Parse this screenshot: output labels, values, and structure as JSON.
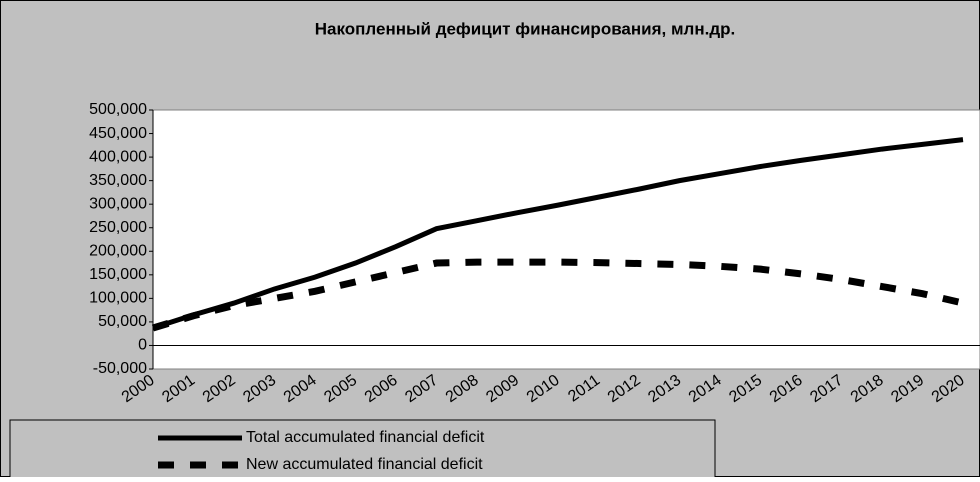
{
  "chart_data": {
    "type": "line",
    "title": "Накопленный дефицит финансирования, млн.др.",
    "categories": [
      "2000",
      "2001",
      "2002",
      "2003",
      "2004",
      "2005",
      "2006",
      "2007",
      "2008",
      "2009",
      "2010",
      "2011",
      "2012",
      "2013",
      "2014",
      "2015",
      "2016",
      "2017",
      "2018",
      "2019",
      "2020"
    ],
    "series": [
      {
        "name": "Total accumulated financial deficit",
        "color": "#000000",
        "style": "solid",
        "values": [
          37000,
          65000,
          90000,
          120000,
          145000,
          175000,
          210000,
          248000,
          265000,
          282000,
          298000,
          315000,
          332000,
          350000,
          365000,
          380000,
          393000,
          405000,
          417000,
          427000,
          437000
        ]
      },
      {
        "name": "New accumulated financial deficit",
        "color": "#000000",
        "style": "dashed",
        "values": [
          37000,
          63000,
          85000,
          100000,
          115000,
          135000,
          155000,
          175000,
          177000,
          177000,
          177000,
          176000,
          174000,
          172000,
          168000,
          162000,
          152000,
          140000,
          125000,
          110000,
          90000
        ]
      }
    ],
    "ylim": [
      -50000,
      500000
    ],
    "yticks": [
      {
        "value": 500000,
        "label": "500,000"
      },
      {
        "value": 450000,
        "label": "450,000"
      },
      {
        "value": 400000,
        "label": "400,000"
      },
      {
        "value": 350000,
        "label": "350,000"
      },
      {
        "value": 300000,
        "label": "300,000"
      },
      {
        "value": 250000,
        "label": "250,000"
      },
      {
        "value": 200000,
        "label": "200,000"
      },
      {
        "value": 150000,
        "label": "150,000"
      },
      {
        "value": 100000,
        "label": "100,000"
      },
      {
        "value": 50000,
        "label": "50,000"
      },
      0,
      {
        "value": -50000,
        "label": "-50,000"
      }
    ]
  }
}
